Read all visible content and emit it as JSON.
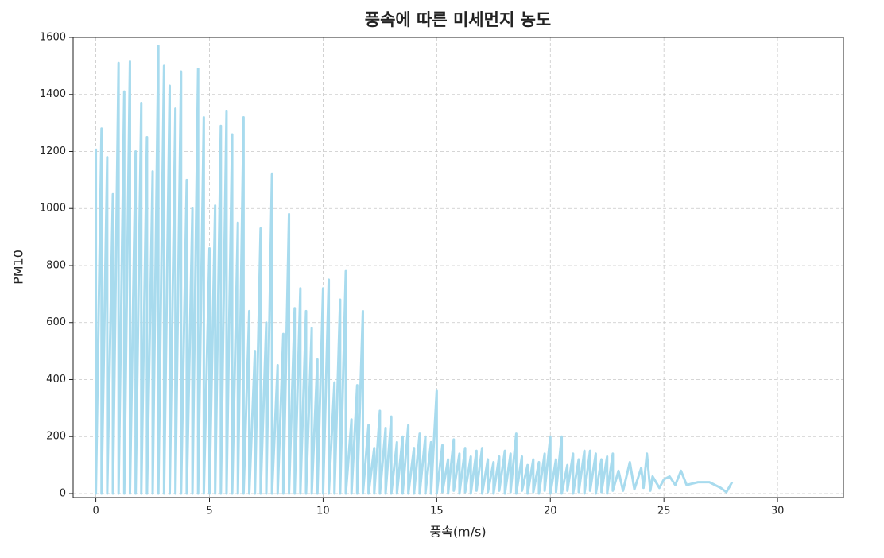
{
  "chart_data": {
    "type": "line",
    "title": "풍속에 따른 미세먼지 농도",
    "x_label": "풍속(m/s)",
    "y_label": "PM10",
    "color": "#a8dbee",
    "grid": true,
    "xlim": [
      -1.0,
      32.9
    ],
    "ylim": [
      -14,
      1600
    ],
    "xticks": [
      0,
      5,
      10,
      15,
      20,
      25,
      30
    ],
    "yticks": [
      0,
      200,
      400,
      600,
      800,
      1000,
      1200,
      1400,
      1600
    ],
    "x": [
      0,
      0,
      0.25,
      0.25,
      0.5,
      0.5,
      0.75,
      0.75,
      1,
      1,
      1.25,
      1.25,
      1.5,
      1.5,
      1.75,
      1.75,
      2,
      2,
      2.25,
      2.25,
      2.5,
      2.5,
      2.75,
      2.75,
      3,
      3,
      3.25,
      3.25,
      3.5,
      3.5,
      3.75,
      3.75,
      4,
      4,
      4.25,
      4.25,
      4.5,
      4.5,
      4.75,
      4.75,
      5,
      5,
      5.25,
      5.25,
      5.5,
      5.5,
      5.75,
      5.75,
      6,
      6,
      6.25,
      6.25,
      6.5,
      6.5,
      6.75,
      6.75,
      7,
      7,
      7.25,
      7.25,
      7.5,
      7.5,
      7.75,
      7.75,
      8,
      8,
      8.25,
      8.25,
      8.5,
      8.5,
      8.75,
      8.75,
      9,
      9,
      9.25,
      9.25,
      9.5,
      9.5,
      9.75,
      9.75,
      10,
      10,
      10.25,
      10.25,
      10.5,
      10.5,
      10.75,
      10.75,
      11,
      11,
      11.25,
      11.25,
      11.5,
      11.5,
      11.75,
      11.75,
      12,
      12,
      12.25,
      12.25,
      12.5,
      12.5,
      12.75,
      12.75,
      13,
      13,
      13.25,
      13.25,
      13.5,
      13.5,
      13.75,
      13.75,
      14,
      14,
      14.25,
      14.25,
      14.5,
      14.5,
      14.75,
      14.75,
      15,
      15,
      15.25,
      15.25,
      15.5,
      15.5,
      15.75,
      15.75,
      16,
      16,
      16.25,
      16.25,
      16.5,
      16.5,
      16.75,
      16.75,
      17,
      17,
      17.25,
      17.25,
      17.5,
      17.5,
      17.75,
      17.75,
      18,
      18,
      18.25,
      18.25,
      18.5,
      18.5,
      18.75,
      18.75,
      19,
      19,
      19.25,
      19.25,
      19.5,
      19.5,
      19.75,
      19.75,
      20,
      20,
      20.25,
      20.25,
      20.5,
      20.5,
      20.75,
      20.75,
      21,
      21,
      21.25,
      21.25,
      21.5,
      21.5,
      21.75,
      21.75,
      22,
      22,
      22.25,
      22.25,
      22.5,
      22.5,
      22.75,
      22.75,
      23,
      23.2,
      23.5,
      23.7,
      24,
      24.1,
      24.25,
      24.4,
      24.5,
      24.8,
      25,
      25.25,
      25.5,
      25.75,
      26,
      26.5,
      27,
      27.5,
      27.75,
      28
    ],
    "values": [
      1210,
      0,
      1280,
      0,
      1180,
      0,
      1050,
      0,
      1510,
      0,
      1410,
      0,
      1515,
      0,
      1200,
      0,
      1370,
      0,
      1250,
      0,
      1130,
      0,
      1570,
      0,
      1500,
      0,
      1430,
      0,
      1350,
      0,
      1480,
      0,
      1100,
      0,
      1000,
      0,
      1490,
      0,
      1320,
      0,
      860,
      0,
      1010,
      0,
      1290,
      0,
      1340,
      0,
      1260,
      0,
      950,
      0,
      1320,
      0,
      640,
      0,
      500,
      0,
      930,
      0,
      600,
      0,
      1120,
      0,
      450,
      0,
      560,
      0,
      980,
      0,
      650,
      0,
      720,
      0,
      640,
      0,
      580,
      0,
      470,
      0,
      720,
      0,
      750,
      0,
      390,
      0,
      680,
      0,
      780,
      0,
      260,
      0,
      380,
      0,
      640,
      0,
      240,
      0,
      160,
      0,
      290,
      0,
      230,
      0,
      270,
      0,
      180,
      0,
      200,
      0,
      240,
      0,
      160,
      0,
      210,
      0,
      200,
      0,
      180,
      0,
      360,
      0,
      170,
      5,
      120,
      0,
      190,
      10,
      140,
      0,
      160,
      5,
      130,
      0,
      150,
      10,
      160,
      0,
      120,
      5,
      110,
      0,
      130,
      10,
      150,
      0,
      140,
      5,
      210,
      0,
      130,
      10,
      100,
      0,
      120,
      5,
      110,
      0,
      140,
      10,
      200,
      0,
      120,
      5,
      200,
      0,
      100,
      10,
      140,
      0,
      120,
      5,
      150,
      0,
      150,
      10,
      140,
      0,
      120,
      5,
      130,
      0,
      140,
      10,
      80,
      10,
      110,
      15,
      90,
      20,
      140,
      10,
      60,
      20,
      50,
      60,
      30,
      80,
      30,
      40,
      40,
      20,
      5,
      40
    ]
  }
}
